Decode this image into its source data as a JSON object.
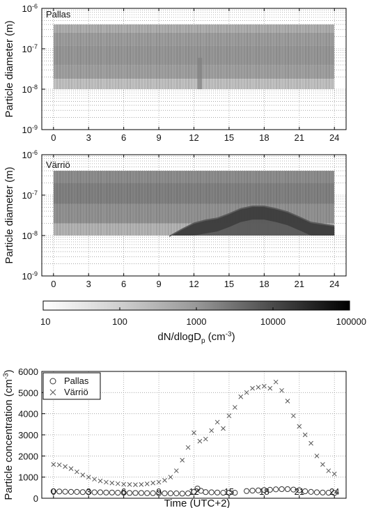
{
  "chart_data": [
    {
      "type": "heatmap",
      "panel_label": "Pallas",
      "ylabel": "Particle diameter (m)",
      "y_scale": "log",
      "ylim": [
        1e-09,
        1e-06
      ],
      "ytick_labels": [
        "10^-9",
        "10^-8",
        "10^-7",
        "10^-6"
      ],
      "xlim": [
        -1,
        25
      ],
      "xticks": [
        0,
        3,
        6,
        9,
        12,
        15,
        18,
        21,
        24
      ],
      "data_extent": {
        "x": [
          0,
          24
        ],
        "y": [
          1e-08,
          4e-07
        ]
      },
      "bands": [
        {
          "y": [
            2.5e-07,
            4e-07
          ],
          "level": 180
        },
        {
          "y": [
            1.2e-07,
            2.5e-07
          ],
          "level": 330
        },
        {
          "y": [
            4e-08,
            1.2e-07
          ],
          "level": 420
        },
        {
          "y": [
            1.8e-08,
            4e-08
          ],
          "level": 300
        },
        {
          "y": [
            1e-08,
            1.8e-08
          ],
          "level": 90
        }
      ],
      "features": [
        {
          "x": [
            12.3,
            12.7
          ],
          "y": [
            1e-08,
            6e-08
          ],
          "level": 1000
        }
      ],
      "grid": true
    },
    {
      "type": "heatmap",
      "panel_label": "Värriö",
      "ylabel": "Particle diameter (m)",
      "y_scale": "log",
      "ylim": [
        1e-09,
        1e-06
      ],
      "ytick_labels": [
        "10^-9",
        "10^-8",
        "10^-7",
        "10^-6"
      ],
      "xlim": [
        -1,
        25
      ],
      "xticks": [
        0,
        3,
        6,
        9,
        12,
        15,
        18,
        21,
        24
      ],
      "data_extent": {
        "x": [
          0,
          24
        ],
        "y": [
          1e-08,
          4e-07
        ]
      },
      "bands": [
        {
          "y": [
            2e-07,
            4e-07
          ],
          "level": 600
        },
        {
          "y": [
            6e-08,
            2e-07
          ],
          "level": 900
        },
        {
          "y": [
            2e-08,
            6e-08
          ],
          "level": 500
        },
        {
          "y": [
            1e-08,
            2e-08
          ],
          "level": 150
        }
      ],
      "event": {
        "x": [
          9.9,
          11,
          12,
          13,
          14,
          15,
          16,
          17,
          18,
          19,
          20,
          21,
          22,
          24
        ],
        "upper_d": [
          1e-08,
          1.5e-08,
          2.1e-08,
          2.5e-08,
          2.8e-08,
          3.6e-08,
          4.8e-08,
          5.5e-08,
          5.5e-08,
          4.8e-08,
          4e-08,
          3e-08,
          2.2e-08,
          1.8e-08
        ],
        "level": 12000
      },
      "grid": true
    },
    {
      "type": "colorbar",
      "scale": "log",
      "range": [
        10,
        100000
      ],
      "tick_labels": [
        "10",
        "100",
        "1000",
        "10000",
        "100000"
      ],
      "label": "dN/dlogD_p (cm^-3)"
    },
    {
      "type": "scatter",
      "ylabel": "Particle concentration (cm^-3)",
      "xlabel": "Time (UTC+2)",
      "xlim": [
        -1,
        25
      ],
      "ylim": [
        0,
        6000
      ],
      "xticks": [
        0,
        3,
        6,
        9,
        12,
        15,
        18,
        21,
        24
      ],
      "yticks": [
        0,
        1000,
        2000,
        3000,
        4000,
        5000,
        6000
      ],
      "legend_position": "top-left",
      "grid": true,
      "series": [
        {
          "name": "Pallas",
          "marker": "circle",
          "x": [
            0,
            0.5,
            1,
            1.5,
            2,
            2.5,
            3,
            3.5,
            4,
            4.5,
            5,
            5.5,
            6,
            6.5,
            7,
            7.5,
            8,
            8.5,
            9,
            9.5,
            10,
            10.5,
            11,
            11.5,
            12,
            12.3,
            12.6,
            13,
            13.5,
            14,
            14.5,
            15,
            15.5,
            16.5,
            17,
            17.5,
            18,
            18.5,
            19,
            19.5,
            20,
            20.5,
            21,
            21.5,
            22,
            22.5,
            23,
            23.5,
            24
          ],
          "y": [
            330,
            320,
            310,
            300,
            300,
            290,
            290,
            280,
            280,
            270,
            270,
            260,
            260,
            250,
            250,
            250,
            240,
            240,
            240,
            230,
            230,
            230,
            220,
            230,
            300,
            460,
            350,
            290,
            280,
            270,
            260,
            260,
            260,
            340,
            360,
            370,
            390,
            400,
            420,
            430,
            430,
            410,
            380,
            330,
            300,
            280,
            270,
            260,
            250
          ]
        },
        {
          "name": "Värriö",
          "marker": "x",
          "x": [
            0,
            0.5,
            1,
            1.5,
            2,
            2.5,
            3,
            3.5,
            4,
            4.5,
            5,
            5.5,
            6,
            6.5,
            7,
            7.5,
            8,
            8.5,
            9,
            9.5,
            10,
            10.5,
            11,
            11.5,
            12,
            12.5,
            13,
            13.5,
            14,
            14.5,
            15,
            15.5,
            16,
            16.5,
            17,
            17.5,
            18,
            18.5,
            19,
            19.5,
            20,
            20.5,
            21,
            21.5,
            22,
            22.5,
            23,
            23.5,
            24
          ],
          "y": [
            1600,
            1580,
            1500,
            1400,
            1250,
            1100,
            1000,
            900,
            820,
            760,
            720,
            690,
            660,
            650,
            640,
            650,
            680,
            720,
            760,
            850,
            1000,
            1300,
            1800,
            2400,
            3100,
            2700,
            2800,
            3200,
            3600,
            3300,
            3900,
            4300,
            4800,
            5000,
            5200,
            5250,
            5300,
            5200,
            5500,
            5100,
            4600,
            3900,
            3400,
            3000,
            2600,
            2000,
            1600,
            1300,
            1150
          ]
        }
      ]
    }
  ]
}
